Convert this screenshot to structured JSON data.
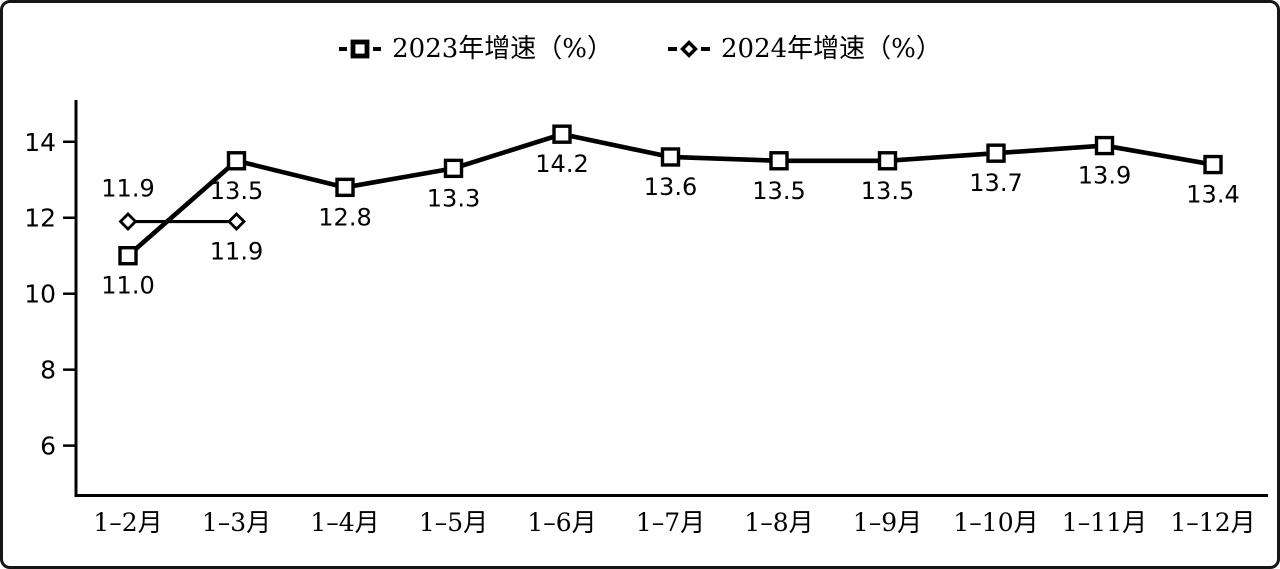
{
  "figure": {
    "background_color": "#ffffff",
    "border_color": "#161616",
    "line_color": "#000000",
    "marker_fill_color": "#ffffff"
  },
  "chart_data": {
    "type": "line",
    "title": "",
    "xlabel": "",
    "ylabel": "",
    "categories": [
      "1–2月",
      "1–3月",
      "1–4月",
      "1–5月",
      "1–6月",
      "1–7月",
      "1–8月",
      "1–9月",
      "1–10月",
      "1–11月",
      "1–12月"
    ],
    "series": [
      {
        "name": "2023年增速（%）",
        "marker": "square",
        "values": [
          11.0,
          13.5,
          12.8,
          13.3,
          14.2,
          13.6,
          13.5,
          13.5,
          13.7,
          13.9,
          13.4
        ],
        "labels": [
          "11.0",
          "13.5",
          "12.8",
          "13.3",
          "14.2",
          "13.6",
          "13.5",
          "13.5",
          "13.7",
          "13.9",
          "13.4"
        ],
        "label_positions": [
          "below",
          "below",
          "below",
          "below",
          "below",
          "below",
          "below",
          "below",
          "below",
          "below",
          "below"
        ]
      },
      {
        "name": "2024年增速（%）",
        "marker": "diamond",
        "values": [
          11.9,
          11.9
        ],
        "labels": [
          "11.9",
          "11.9"
        ],
        "label_positions": [
          "above",
          "below"
        ]
      }
    ],
    "yticks": [
      14,
      12,
      10,
      8,
      6
    ],
    "ylim": [
      4.7,
      15.1
    ],
    "grid": false,
    "legend_position": "top-center"
  }
}
